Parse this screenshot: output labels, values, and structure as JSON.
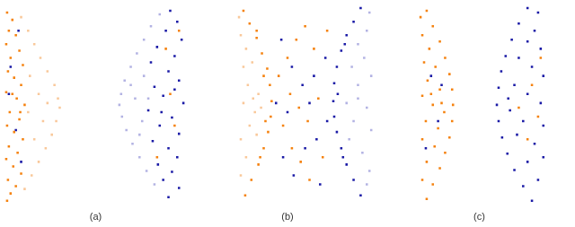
{
  "chart_data": [
    {
      "type": "scatter",
      "xlabel": "(a)",
      "xlim": [
        0,
        210
      ],
      "ylim": [
        0,
        230
      ],
      "grid": false,
      "tick_labels": false,
      "marker": "square",
      "series": [
        {
          "color": "#f9c89a",
          "values": [
            [
              20,
              215
            ],
            [
              28,
              200
            ],
            [
              35,
              185
            ],
            [
              42,
              170
            ],
            [
              50,
              155
            ],
            [
              58,
              140
            ],
            [
              62,
              125
            ],
            [
              64,
              115
            ],
            [
              60,
              100
            ],
            [
              55,
              85
            ],
            [
              48,
              70
            ],
            [
              40,
              55
            ],
            [
              32,
              40
            ],
            [
              24,
              25
            ],
            [
              40,
              130
            ],
            [
              45,
              100
            ],
            [
              30,
              150
            ],
            [
              35,
              80
            ],
            [
              50,
              120
            ],
            [
              28,
              110
            ]
          ]
        },
        {
          "color": "#b3b3e3",
          "values": [
            [
              178,
              218
            ],
            [
              168,
              205
            ],
            [
              160,
              190
            ],
            [
              152,
              175
            ],
            [
              145,
              160
            ],
            [
              138,
              145
            ],
            [
              134,
              130
            ],
            [
              132,
              118
            ],
            [
              135,
              105
            ],
            [
              140,
              90
            ],
            [
              147,
              75
            ],
            [
              155,
              60
            ],
            [
              163,
              45
            ],
            [
              172,
              30
            ],
            [
              150,
              125
            ],
            [
              158,
              100
            ],
            [
              145,
              140
            ],
            [
              160,
              150
            ],
            [
              155,
              85
            ],
            [
              165,
              125
            ]
          ]
        },
        {
          "color": "#f5820f",
          "values": [
            [
              4,
              220
            ],
            [
              10,
              212
            ],
            [
              6,
              200
            ],
            [
              14,
              195
            ],
            [
              3,
              185
            ],
            [
              18,
              178
            ],
            [
              8,
              170
            ],
            [
              22,
              162
            ],
            [
              5,
              155
            ],
            [
              12,
              148
            ],
            [
              20,
              140
            ],
            [
              3,
              132
            ],
            [
              15,
              125
            ],
            [
              24,
              118
            ],
            [
              7,
              110
            ],
            [
              18,
              102
            ],
            [
              4,
              95
            ],
            [
              12,
              88
            ],
            [
              22,
              80
            ],
            [
              6,
              72
            ],
            [
              16,
              65
            ],
            [
              3,
              58
            ],
            [
              11,
              50
            ],
            [
              20,
              42
            ],
            [
              5,
              35
            ],
            [
              14,
              28
            ],
            [
              8,
              20
            ],
            [
              4,
              12
            ],
            [
              19,
              110
            ],
            [
              10,
              130
            ]
          ]
        },
        {
          "color": "#1a1aa6",
          "values": [
            [
              190,
              222
            ],
            [
              198,
              210
            ],
            [
              185,
              200
            ],
            [
              203,
              190
            ],
            [
              175,
              182
            ],
            [
              195,
              172
            ],
            [
              168,
              165
            ],
            [
              188,
              155
            ],
            [
              200,
              145
            ],
            [
              172,
              138
            ],
            [
              182,
              128
            ],
            [
              205,
              120
            ],
            [
              165,
              112
            ],
            [
              192,
              104
            ],
            [
              178,
              95
            ],
            [
              200,
              86
            ],
            [
              170,
              78
            ],
            [
              188,
              70
            ],
            [
              198,
              60
            ],
            [
              176,
              52
            ],
            [
              192,
              44
            ],
            [
              182,
              35
            ],
            [
              200,
              26
            ],
            [
              188,
              16
            ],
            [
              180,
              110
            ],
            [
              195,
              135
            ],
            [
              8,
              160
            ],
            [
              14,
              90
            ],
            [
              20,
              55
            ],
            [
              6,
              130
            ],
            [
              17,
              200
            ]
          ]
        },
        {
          "color": "#f5820f",
          "values": [
            [
              185,
              180
            ],
            [
              195,
              95
            ],
            [
              175,
              60
            ],
            [
              190,
              130
            ],
            [
              200,
              200
            ]
          ]
        }
      ]
    },
    {
      "type": "scatter",
      "xlabel": "(b)",
      "xlim": [
        0,
        210
      ],
      "ylim": [
        0,
        230
      ],
      "grid": false,
      "tick_labels": false,
      "marker": "square",
      "series": [
        {
          "color": "#f9c89a",
          "values": [
            [
              50,
              215
            ],
            [
              52,
              195
            ],
            [
              58,
              180
            ],
            [
              55,
              160
            ],
            [
              65,
              165
            ],
            [
              60,
              140
            ],
            [
              72,
              130
            ],
            [
              55,
              120
            ],
            [
              68,
              110
            ],
            [
              62,
              95
            ],
            [
              52,
              80
            ],
            [
              70,
              85
            ],
            [
              58,
              60
            ],
            [
              52,
              40
            ],
            [
              66,
              125
            ],
            [
              75,
              115
            ]
          ]
        },
        {
          "color": "#b3b3e3",
          "values": [
            [
              198,
              220
            ],
            [
              195,
              200
            ],
            [
              185,
              185
            ],
            [
              192,
              170
            ],
            [
              178,
              160
            ],
            [
              200,
              150
            ],
            [
              185,
              140
            ],
            [
              172,
              120
            ],
            [
              195,
              115
            ],
            [
              180,
              100
            ],
            [
              200,
              90
            ],
            [
              175,
              80
            ],
            [
              190,
              65
            ],
            [
              198,
              45
            ],
            [
              185,
              125
            ],
            [
              195,
              30
            ]
          ]
        },
        {
          "color": "#f5820f",
          "values": [
            [
              55,
              222
            ],
            [
              62,
              208
            ],
            [
              70,
              192
            ],
            [
              76,
              175
            ],
            [
              82,
              158
            ],
            [
              85,
              140
            ],
            [
              87,
              122
            ],
            [
              86,
              105
            ],
            [
              83,
              88
            ],
            [
              78,
              70
            ],
            [
              72,
              52
            ],
            [
              64,
              35
            ],
            [
              57,
              18
            ],
            [
              70,
              200
            ],
            [
              78,
              150
            ],
            [
              80,
              100
            ],
            [
              74,
              60
            ],
            [
              95,
              150
            ],
            [
              105,
              170
            ],
            [
              115,
              190
            ],
            [
              125,
              205
            ],
            [
              100,
              95
            ],
            [
              110,
              70
            ],
            [
              120,
              55
            ],
            [
              130,
              35
            ],
            [
              140,
              125
            ],
            [
              108,
              130
            ],
            [
              135,
              180
            ],
            [
              150,
              200
            ],
            [
              118,
              115
            ],
            [
              145,
              60
            ],
            [
              128,
              100
            ]
          ]
        },
        {
          "color": "#1a1aa6",
          "values": [
            [
              188,
              225
            ],
            [
              180,
              210
            ],
            [
              172,
              195
            ],
            [
              166,
              178
            ],
            [
              161,
              160
            ],
            [
              158,
              142
            ],
            [
              157,
              122
            ],
            [
              158,
              105
            ],
            [
              161,
              88
            ],
            [
              166,
              70
            ],
            [
              172,
              52
            ],
            [
              180,
              35
            ],
            [
              188,
              18
            ],
            [
              170,
              185
            ],
            [
              162,
              130
            ],
            [
              168,
              60
            ],
            [
              98,
              190
            ],
            [
              110,
              160
            ],
            [
              92,
              120
            ],
            [
              105,
              110
            ],
            [
              122,
              140
            ],
            [
              135,
              150
            ],
            [
              148,
              170
            ],
            [
              112,
              40
            ],
            [
              138,
              80
            ],
            [
              150,
              100
            ],
            [
              125,
              70
            ],
            [
              100,
              60
            ],
            [
              142,
              30
            ],
            [
              130,
              120
            ]
          ]
        }
      ]
    },
    {
      "type": "scatter",
      "xlabel": "(c)",
      "xlim": [
        0,
        210
      ],
      "ylim": [
        0,
        230
      ],
      "grid": false,
      "tick_labels": false,
      "marker": "square",
      "series": [
        {
          "color": "#f5820f",
          "values": [
            [
              45,
              222
            ],
            [
              52,
              205
            ],
            [
              60,
              188
            ],
            [
              66,
              170
            ],
            [
              71,
              152
            ],
            [
              74,
              135
            ],
            [
              75,
              118
            ],
            [
              74,
              100
            ],
            [
              71,
              82
            ],
            [
              66,
              65
            ],
            [
              60,
              48
            ],
            [
              52,
              30
            ],
            [
              45,
              14
            ],
            [
              38,
              215
            ],
            [
              40,
              195
            ],
            [
              48,
              180
            ],
            [
              42,
              165
            ],
            [
              55,
              160
            ],
            [
              46,
              145
            ],
            [
              60,
              135
            ],
            [
              40,
              128
            ],
            [
              52,
              118
            ],
            [
              65,
              110
            ],
            [
              44,
              100
            ],
            [
              58,
              92
            ],
            [
              40,
              80
            ],
            [
              54,
              72
            ],
            [
              45,
              55
            ],
            [
              40,
              35
            ],
            [
              62,
              120
            ],
            [
              50,
              130
            ]
          ]
        },
        {
          "color": "#1a1aa6",
          "values": [
            [
              160,
              225
            ],
            [
              150,
              208
            ],
            [
              142,
              190
            ],
            [
              135,
              172
            ],
            [
              130,
              155
            ],
            [
              127,
              137
            ],
            [
              125,
              118
            ],
            [
              127,
              100
            ],
            [
              131,
              82
            ],
            [
              137,
              64
            ],
            [
              145,
              46
            ],
            [
              155,
              28
            ],
            [
              165,
              12
            ],
            [
              172,
              220
            ],
            [
              168,
              200
            ],
            [
              160,
              188
            ],
            [
              175,
              180
            ],
            [
              150,
              170
            ],
            [
              165,
              160
            ],
            [
              178,
              150
            ],
            [
              145,
              140
            ],
            [
              160,
              130
            ],
            [
              175,
              120
            ],
            [
              140,
              112
            ],
            [
              155,
              100
            ],
            [
              178,
              95
            ],
            [
              148,
              85
            ],
            [
              168,
              75
            ],
            [
              178,
              60
            ],
            [
              160,
              55
            ],
            [
              172,
              35
            ],
            [
              138,
              125
            ],
            [
              50,
              150
            ],
            [
              58,
              100
            ],
            [
              44,
              70
            ],
            [
              62,
              140
            ]
          ]
        },
        {
          "color": "#f5820f",
          "values": [
            [
              165,
              140
            ],
            [
              150,
              115
            ],
            [
              172,
              105
            ],
            [
              160,
              80
            ],
            [
              175,
              170
            ]
          ]
        }
      ]
    }
  ]
}
